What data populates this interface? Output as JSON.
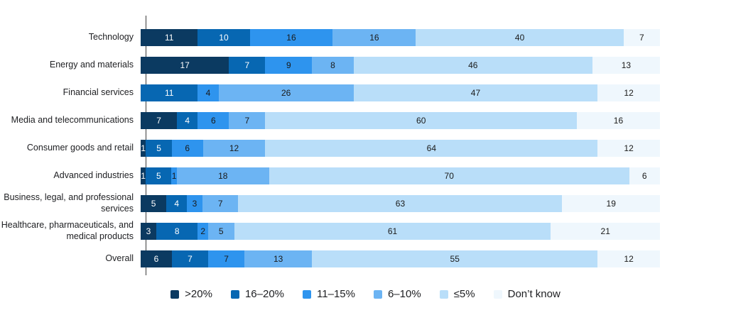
{
  "chart_data": {
    "type": "bar",
    "variant": "horizontal-stacked",
    "unit": "%",
    "grid": false,
    "legend_position": "bottom-center",
    "categories": [
      "Technology",
      "Energy and materials",
      "Financial services",
      "Media and telecommunications",
      "Consumer goods and retail",
      "Advanced industries",
      "Business, legal, and professional services",
      "Healthcare, pharmaceuticals, and medical products",
      "Overall"
    ],
    "series": [
      {
        "name": ">20%",
        "color": "#0b3a61",
        "label_color": "#ffffff",
        "values": [
          11,
          17,
          0,
          7,
          1,
          1,
          5,
          3,
          6
        ]
      },
      {
        "name": "16–20%",
        "color": "#0767b2",
        "label_color": "#ffffff",
        "values": [
          10,
          7,
          11,
          4,
          5,
          5,
          4,
          8,
          7
        ]
      },
      {
        "name": "11–15%",
        "color": "#2e94ee",
        "label_color": "#1a1a1a",
        "values": [
          16,
          9,
          4,
          6,
          6,
          1,
          3,
          2,
          7
        ]
      },
      {
        "name": "6–10%",
        "color": "#6cb4f3",
        "label_color": "#1a1a1a",
        "values": [
          16,
          8,
          26,
          7,
          12,
          18,
          7,
          5,
          13
        ]
      },
      {
        "name": "≤5%",
        "color": "#b9def9",
        "label_color": "#1a1a1a",
        "values": [
          40,
          46,
          47,
          60,
          64,
          70,
          63,
          61,
          55
        ]
      },
      {
        "name": "Don’t know",
        "color": "#eff7fd",
        "label_color": "#1a1a1a",
        "values": [
          7,
          13,
          12,
          16,
          12,
          6,
          19,
          21,
          12
        ]
      }
    ]
  }
}
